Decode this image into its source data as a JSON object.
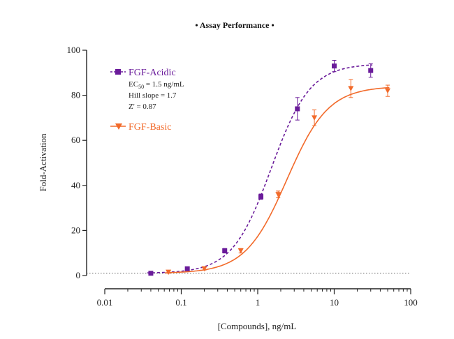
{
  "colors": {
    "acidic": "#6a1b9a",
    "basic": "#f26a2a",
    "axis": "#222222",
    "baseline": "#666666"
  },
  "chart_data": {
    "type": "scatter",
    "title": "• Assay Performance •",
    "xlabel": "[Compounds], ng/mL",
    "ylabel": "Fold-Activation",
    "x_scale": "log",
    "xlim": [
      0.01,
      100
    ],
    "ylim": [
      0,
      100
    ],
    "x_ticks": [
      0.01,
      0.1,
      1,
      10,
      100
    ],
    "x_tick_labels": [
      "0.01",
      "0.1",
      "1",
      "10",
      "100"
    ],
    "y_ticks": [
      0,
      20,
      40,
      60,
      80,
      100
    ],
    "y_tick_labels": [
      "0",
      "20",
      "40",
      "60",
      "80",
      "100"
    ],
    "baseline": 1,
    "legend_placement": "top-left",
    "grid": false,
    "series": [
      {
        "name": "FGF-Acidic",
        "marker": "square",
        "line": "dashed",
        "x": [
          0.04,
          0.12,
          0.37,
          1.1,
          3.3,
          10,
          30
        ],
        "y": [
          1,
          3,
          11,
          35,
          74,
          93,
          91
        ],
        "err": [
          0.5,
          0.7,
          1,
          1.2,
          5,
          2.5,
          3
        ],
        "fit": {
          "bottom": 1,
          "top": 94,
          "ec50": 1.5,
          "hill": 1.7
        },
        "stats": [
          "Hill slope = 1.7",
          "Z' = 0.87"
        ],
        "ec_line": {
          "prefix": "EC",
          "sub": "50",
          "suffix": " = 1.5 ng/mL"
        }
      },
      {
        "name": "FGF-Basic",
        "marker": "triangle-down",
        "line": "solid",
        "x": [
          0.068,
          0.2,
          0.6,
          1.85,
          5.5,
          16.5,
          50
        ],
        "y": [
          1.5,
          3,
          11,
          36,
          70,
          83,
          82
        ],
        "err": [
          0.5,
          0.6,
          1,
          1.5,
          3.5,
          4,
          2.5
        ],
        "fit": {
          "bottom": 1,
          "top": 84,
          "ec50": 2.4,
          "hill": 1.6
        }
      }
    ]
  }
}
